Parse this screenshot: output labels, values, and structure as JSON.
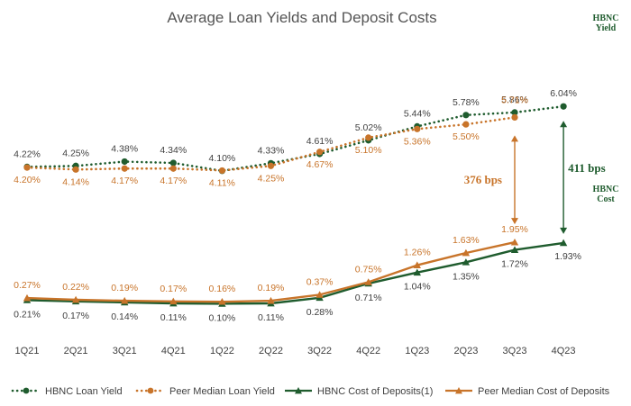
{
  "chart_data": {
    "type": "line",
    "title": "Average Loan Yields and Deposit Costs",
    "xlabel": "",
    "ylabel": "",
    "categories": [
      "1Q21",
      "2Q21",
      "3Q21",
      "4Q21",
      "1Q22",
      "2Q22",
      "3Q22",
      "4Q22",
      "1Q23",
      "2Q23",
      "3Q23",
      "4Q23"
    ],
    "series": [
      {
        "name": "HBNC Loan Yield",
        "style": "dotted",
        "marker": "circle",
        "color": "#1f5c2e",
        "values": [
          4.22,
          4.25,
          4.38,
          4.34,
          4.1,
          4.33,
          4.61,
          5.02,
          5.44,
          5.78,
          5.86,
          6.04
        ],
        "labels": [
          "4.22%",
          "4.25%",
          "4.38%",
          "4.34%",
          "4.10%",
          "4.33%",
          "4.61%",
          "5.02%",
          "5.44%",
          "5.78%",
          "5.86%",
          "6.04%"
        ]
      },
      {
        "name": "Peer Median Loan Yield",
        "style": "dotted",
        "marker": "circle",
        "color": "#c8742a",
        "values": [
          4.2,
          4.14,
          4.17,
          4.17,
          4.11,
          4.25,
          4.67,
          5.1,
          5.36,
          5.5,
          5.71,
          null
        ],
        "labels": [
          "4.20%",
          "4.14%",
          "4.17%",
          "4.17%",
          "4.11%",
          "4.25%",
          "4.67%",
          "5.10%",
          "5.36%",
          "5.50%",
          "5.71%",
          ""
        ]
      },
      {
        "name": "HBNC Cost of Deposits(1)",
        "style": "solid",
        "marker": "triangle",
        "color": "#1f5c2e",
        "values": [
          0.21,
          0.17,
          0.14,
          0.11,
          0.1,
          0.11,
          0.28,
          0.71,
          1.04,
          1.35,
          1.72,
          1.93
        ],
        "labels": [
          "0.21%",
          "0.17%",
          "0.14%",
          "0.11%",
          "0.10%",
          "0.11%",
          "0.28%",
          "0.71%",
          "1.04%",
          "1.35%",
          "1.72%",
          "1.93%"
        ]
      },
      {
        "name": "Peer Median Cost of Deposits",
        "style": "solid",
        "marker": "triangle",
        "color": "#c8742a",
        "values": [
          0.27,
          0.22,
          0.19,
          0.17,
          0.16,
          0.19,
          0.37,
          0.75,
          1.26,
          1.63,
          1.95,
          null
        ],
        "labels": [
          "0.27%",
          "0.22%",
          "0.19%",
          "0.17%",
          "0.16%",
          "0.19%",
          "0.37%",
          "0.75%",
          "1.26%",
          "1.63%",
          "1.95%",
          ""
        ]
      }
    ],
    "annotations": {
      "peer_spread": "376 bps",
      "hbnc_spread": "411 bps",
      "hbnc_yield_label_line1": "HBNC",
      "hbnc_yield_label_line2": "Yield",
      "hbnc_cost_label_line1": "HBNC",
      "hbnc_cost_label_line2": "Cost"
    },
    "grid": false,
    "legend_position": "bottom"
  }
}
